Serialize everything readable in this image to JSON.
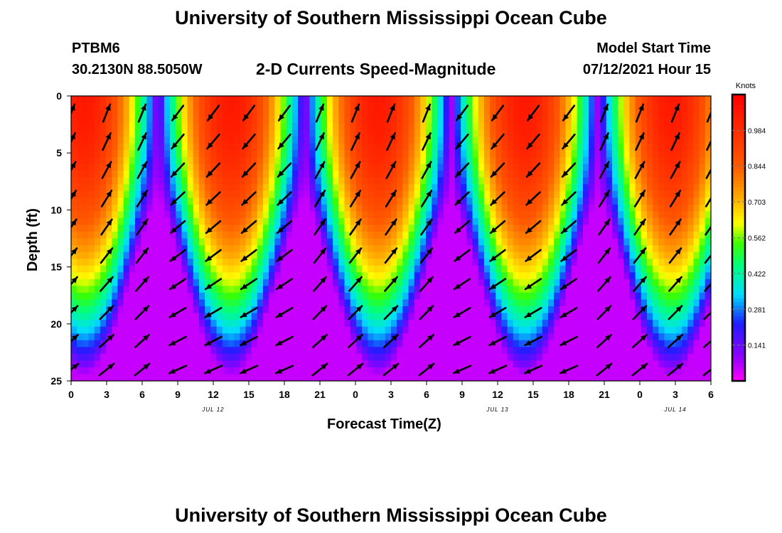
{
  "header": {
    "title_top": "University of Southern Mississippi Ocean Cube",
    "title_bottom": "University of Southern Mississippi Ocean Cube",
    "station": "PTBM6",
    "coords": "30.2130N  88.5050W",
    "plot_title": "2-D Currents Speed-Magnitude",
    "model_label": "Model Start Time",
    "model_time": "07/12/2021 Hour 15"
  },
  "chart_data": {
    "type": "heatmap",
    "title": "2-D Currents Speed-Magnitude",
    "xlabel": "Forecast Time(Z)",
    "ylabel": "Depth (ft)",
    "x_tick_labels": [
      "0",
      "3",
      "6",
      "9",
      "12",
      "15",
      "18",
      "21",
      "0",
      "3",
      "6",
      "9",
      "12",
      "15",
      "18",
      "21",
      "0",
      "3",
      "6"
    ],
    "y_ticks": [
      0,
      5,
      10,
      15,
      20,
      25
    ],
    "ylim": [
      25,
      0
    ],
    "day_labels": [
      {
        "label": "JUL 12",
        "x_hour": 12
      },
      {
        "label": "JUL 13",
        "x_hour": 36
      },
      {
        "label": "JUL 14",
        "x_hour": 51
      }
    ],
    "colorbar": {
      "unit": "Knots",
      "ticks": [
        0.141,
        0.281,
        0.422,
        0.562,
        0.703,
        0.844,
        0.984
      ],
      "range": [
        0.0,
        1.125
      ]
    },
    "x_range_hours": [
      0,
      54
    ],
    "grid": false,
    "vector_rows_ft": [
      1.5,
      4.0,
      6.5,
      9.0,
      11.5,
      14.0,
      16.5,
      19.0,
      21.5,
      24.0
    ],
    "vector_cols_hours": [
      0,
      3,
      6,
      9,
      12,
      15,
      18,
      21,
      24,
      27,
      30,
      33,
      36,
      39,
      42,
      45,
      48,
      51,
      54
    ]
  }
}
